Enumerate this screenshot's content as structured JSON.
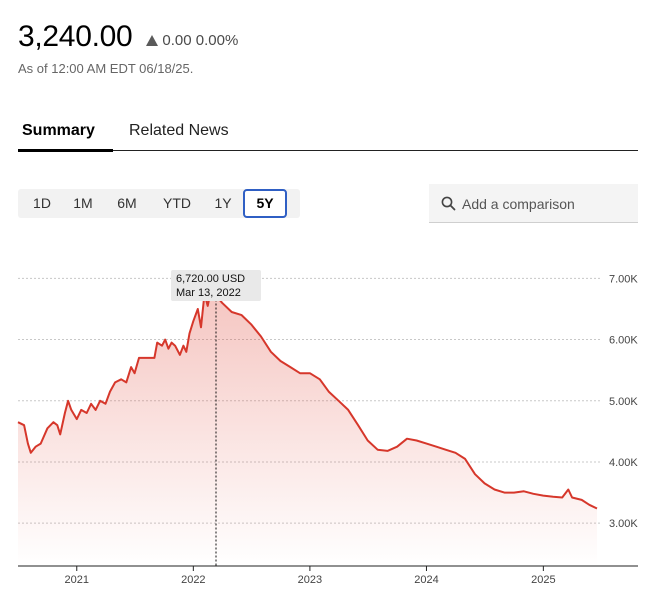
{
  "header": {
    "price": "3,240.00",
    "change": "0.00 0.00%",
    "as_of": "As of 12:00 AM EDT 06/18/25."
  },
  "tabs": [
    {
      "label": "Summary",
      "active": true
    },
    {
      "label": "Related News",
      "active": false
    }
  ],
  "ranges": [
    {
      "label": "1D",
      "active": false
    },
    {
      "label": "1M",
      "active": false
    },
    {
      "label": "6M",
      "active": false
    },
    {
      "label": "YTD",
      "active": false
    },
    {
      "label": "1Y",
      "active": false
    },
    {
      "label": "5Y",
      "active": true
    }
  ],
  "comparison": {
    "placeholder": "Add a comparison",
    "icon": "search-icon"
  },
  "chart_data": {
    "type": "area",
    "color": "#d6372b",
    "y_ticks": [
      "3.00K",
      "4.00K",
      "5.00K",
      "6.00K",
      "7.00K"
    ],
    "x_ticks": [
      "2021",
      "2022",
      "2023",
      "2024",
      "2025"
    ],
    "y_range": [
      2300,
      7300
    ],
    "tooltip": {
      "value": "6,720.00 USD",
      "date": "Mar 13, 2022"
    },
    "series": [
      [
        "2020-07-01",
        4650
      ],
      [
        "2020-07-20",
        4600
      ],
      [
        "2020-08-01",
        4300
      ],
      [
        "2020-08-10",
        4150
      ],
      [
        "2020-08-25",
        4250
      ],
      [
        "2020-09-10",
        4300
      ],
      [
        "2020-10-01",
        4550
      ],
      [
        "2020-10-20",
        4650
      ],
      [
        "2020-11-01",
        4600
      ],
      [
        "2020-11-10",
        4450
      ],
      [
        "2020-11-25",
        4800
      ],
      [
        "2020-12-05",
        5000
      ],
      [
        "2020-12-15",
        4850
      ],
      [
        "2021-01-01",
        4700
      ],
      [
        "2021-01-15",
        4850
      ],
      [
        "2021-02-01",
        4800
      ],
      [
        "2021-02-15",
        4950
      ],
      [
        "2021-03-01",
        4850
      ],
      [
        "2021-03-15",
        5000
      ],
      [
        "2021-04-01",
        4950
      ],
      [
        "2021-04-15",
        5150
      ],
      [
        "2021-05-01",
        5300
      ],
      [
        "2021-05-20",
        5350
      ],
      [
        "2021-06-05",
        5300
      ],
      [
        "2021-06-20",
        5550
      ],
      [
        "2021-07-01",
        5450
      ],
      [
        "2021-07-15",
        5700
      ],
      [
        "2021-08-01",
        5700
      ],
      [
        "2021-08-20",
        5700
      ],
      [
        "2021-09-01",
        5700
      ],
      [
        "2021-09-10",
        5950
      ],
      [
        "2021-09-25",
        5900
      ],
      [
        "2021-10-05",
        6000
      ],
      [
        "2021-10-15",
        5850
      ],
      [
        "2021-10-25",
        5950
      ],
      [
        "2021-11-05",
        5900
      ],
      [
        "2021-11-20",
        5750
      ],
      [
        "2021-12-01",
        5900
      ],
      [
        "2021-12-10",
        5800
      ],
      [
        "2021-12-20",
        6100
      ],
      [
        "2022-01-01",
        6300
      ],
      [
        "2022-01-15",
        6500
      ],
      [
        "2022-01-25",
        6200
      ],
      [
        "2022-02-05",
        6750
      ],
      [
        "2022-02-15",
        6550
      ],
      [
        "2022-02-25",
        6800
      ],
      [
        "2022-03-13",
        6720
      ],
      [
        "2022-04-01",
        6600
      ],
      [
        "2022-05-01",
        6450
      ],
      [
        "2022-06-01",
        6400
      ],
      [
        "2022-07-01",
        6250
      ],
      [
        "2022-08-01",
        6050
      ],
      [
        "2022-09-01",
        5800
      ],
      [
        "2022-10-01",
        5650
      ],
      [
        "2022-11-01",
        5550
      ],
      [
        "2022-12-01",
        5450
      ],
      [
        "2023-01-01",
        5450
      ],
      [
        "2023-02-01",
        5350
      ],
      [
        "2023-03-01",
        5150
      ],
      [
        "2023-04-01",
        5000
      ],
      [
        "2023-05-01",
        4850
      ],
      [
        "2023-06-01",
        4600
      ],
      [
        "2023-07-01",
        4350
      ],
      [
        "2023-08-01",
        4200
      ],
      [
        "2023-09-01",
        4180
      ],
      [
        "2023-10-01",
        4250
      ],
      [
        "2023-11-01",
        4380
      ],
      [
        "2023-12-01",
        4350
      ],
      [
        "2024-01-01",
        4300
      ],
      [
        "2024-02-01",
        4250
      ],
      [
        "2024-03-01",
        4200
      ],
      [
        "2024-04-01",
        4150
      ],
      [
        "2024-05-01",
        4050
      ],
      [
        "2024-06-01",
        3800
      ],
      [
        "2024-07-01",
        3650
      ],
      [
        "2024-08-01",
        3550
      ],
      [
        "2024-09-01",
        3500
      ],
      [
        "2024-10-01",
        3500
      ],
      [
        "2024-11-01",
        3520
      ],
      [
        "2024-12-01",
        3480
      ],
      [
        "2025-01-01",
        3450
      ],
      [
        "2025-02-01",
        3430
      ],
      [
        "2025-03-01",
        3420
      ],
      [
        "2025-03-20",
        3550
      ],
      [
        "2025-04-01",
        3420
      ],
      [
        "2025-05-01",
        3380
      ],
      [
        "2025-05-25",
        3300
      ],
      [
        "2025-06-18",
        3240
      ]
    ]
  }
}
